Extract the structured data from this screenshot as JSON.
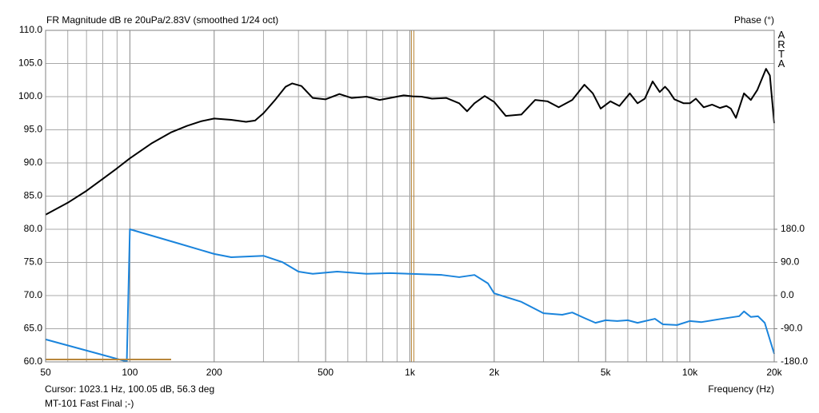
{
  "chart_data": {
    "type": "line",
    "title": "FR Magnitude dB re 20uPa/2.83V (smoothed 1/24 oct)",
    "y2_label": "Phase (°)",
    "watermark": "ARTA",
    "x_label": "Frequency (Hz)",
    "cursor": {
      "text": "Cursor: 1023.1 Hz, 100.05 dB, 56.3 deg",
      "x": 1023.1,
      "color": "#b8863b"
    },
    "footer": "MT-101 Fast Final ;-)",
    "xscale": "log",
    "xlim": [
      50,
      20000
    ],
    "xticks": [
      50,
      100,
      200,
      500,
      {
        "value": 1000,
        "label": "1k"
      },
      {
        "value": 2000,
        "label": "2k"
      },
      {
        "value": 5000,
        "label": "5k"
      },
      {
        "value": 10000,
        "label": "10k"
      },
      {
        "value": 20000,
        "label": "20k"
      }
    ],
    "xminor": [
      60,
      70,
      80,
      90,
      300,
      400,
      600,
      700,
      800,
      900,
      3000,
      4000,
      6000,
      7000,
      8000,
      9000
    ],
    "ylim": [
      60,
      110
    ],
    "yticks": [
      {
        "value": 60,
        "label": "60.0"
      },
      {
        "value": 65,
        "label": "65.0"
      },
      {
        "value": 70,
        "label": "70.0"
      },
      {
        "value": 75,
        "label": "75.0"
      },
      {
        "value": 80,
        "label": "80.0"
      },
      {
        "value": 85,
        "label": "85.0"
      },
      {
        "value": 90,
        "label": "90.0"
      },
      {
        "value": 95,
        "label": "95.0"
      },
      {
        "value": 100,
        "label": "100.0"
      },
      {
        "value": 105,
        "label": "105.0"
      },
      {
        "value": 110,
        "label": "110.0"
      }
    ],
    "y2lim": [
      -180,
      720
    ],
    "y2ticks": [
      {
        "value": 180,
        "label": "180.0"
      },
      {
        "value": 90,
        "label": "90.0"
      },
      {
        "value": 0,
        "label": "0.0"
      },
      {
        "value": -90,
        "label": "-90.0"
      },
      {
        "value": -180,
        "label": "-180.0"
      }
    ],
    "grid": true,
    "series": [
      {
        "color": "#000000",
        "x": [
          50,
          60,
          70,
          80,
          90,
          100,
          120,
          140,
          160,
          180,
          200,
          230,
          260,
          280,
          300,
          330,
          360,
          380,
          410,
          450,
          500,
          560,
          620,
          700,
          780,
          850,
          950,
          1023,
          1100,
          1200,
          1350,
          1500,
          1600,
          1700,
          1850,
          2000,
          2200,
          2500,
          2800,
          3100,
          3400,
          3800,
          4200,
          4500,
          4800,
          5200,
          5600,
          6100,
          6500,
          6900,
          7360,
          7800,
          8150,
          8400,
          8800,
          9500,
          10000,
          10500,
          11200,
          12000,
          12800,
          13500,
          14000,
          14600,
          15600,
          16500,
          17400,
          18700,
          19300,
          20000
        ],
        "values": [
          82.2,
          84.0,
          85.8,
          87.6,
          89.2,
          90.7,
          93.0,
          94.6,
          95.6,
          96.3,
          96.7,
          96.5,
          96.2,
          96.4,
          97.5,
          99.5,
          101.5,
          102.0,
          101.6,
          99.8,
          99.6,
          100.4,
          99.8,
          100.0,
          99.5,
          99.8,
          100.2,
          100.05,
          100.0,
          99.7,
          99.8,
          99.0,
          97.8,
          99.0,
          100.1,
          99.2,
          97.1,
          97.3,
          99.5,
          99.3,
          98.4,
          99.5,
          101.8,
          100.5,
          98.2,
          99.3,
          98.6,
          100.5,
          99.0,
          99.7,
          102.3,
          100.7,
          101.5,
          100.9,
          99.6,
          99.0,
          99.0,
          99.7,
          98.4,
          98.8,
          98.3,
          98.6,
          98.2,
          96.8,
          100.5,
          99.5,
          101.0,
          104.2,
          103.2,
          96.0
        ]
      },
      {
        "color": "#1a84dc",
        "axis": "y2",
        "x": [
          50,
          97.5,
          100,
          150,
          200,
          230,
          300,
          350,
          400,
          450,
          550,
          700,
          850,
          1000,
          1300,
          1500,
          1700,
          1900,
          2000,
          2500,
          3000,
          3500,
          3800,
          4200,
          4600,
          5000,
          5500,
          6000,
          6500,
          7500,
          8000,
          9000,
          10000,
          11000,
          13000,
          15000,
          15600,
          16500,
          17500,
          18500,
          20000
        ],
        "values": [
          -119,
          -179,
          180,
          141,
          113,
          104,
          108,
          91,
          65,
          59,
          65,
          59,
          61,
          59,
          56,
          50,
          56,
          33,
          6,
          -17,
          -48,
          -52,
          -46,
          -61,
          -74,
          -67,
          -69,
          -67,
          -74,
          -63,
          -78,
          -80,
          -69,
          -72,
          -63,
          -56,
          -43,
          -58,
          -56,
          -74,
          -158
        ]
      }
    ]
  }
}
